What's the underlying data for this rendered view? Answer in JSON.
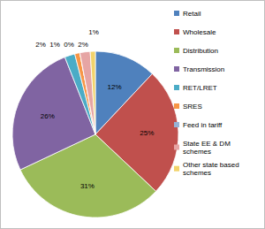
{
  "chart_data": {
    "type": "pie",
    "categories": [
      "Retail",
      "Wholesale",
      "Distribution",
      "Transmission",
      "RET/LRET",
      "SRES",
      "Feed in tariff",
      "State EE & DM schemes",
      "Other state based schemes"
    ],
    "values": [
      12,
      25,
      31,
      26,
      2,
      1,
      0,
      2,
      1
    ],
    "value_labels": [
      "12%",
      "25%",
      "31%",
      "26%",
      "2%",
      "1%",
      "0%",
      "2%",
      "1%"
    ],
    "colors": [
      "#4f81bd",
      "#c0504d",
      "#9bbb59",
      "#8064a2",
      "#4bacc6",
      "#f79646",
      "#95b3d7",
      "#e6a5a4",
      "#f2d36b"
    ],
    "data_labels": true,
    "legend": "right"
  }
}
